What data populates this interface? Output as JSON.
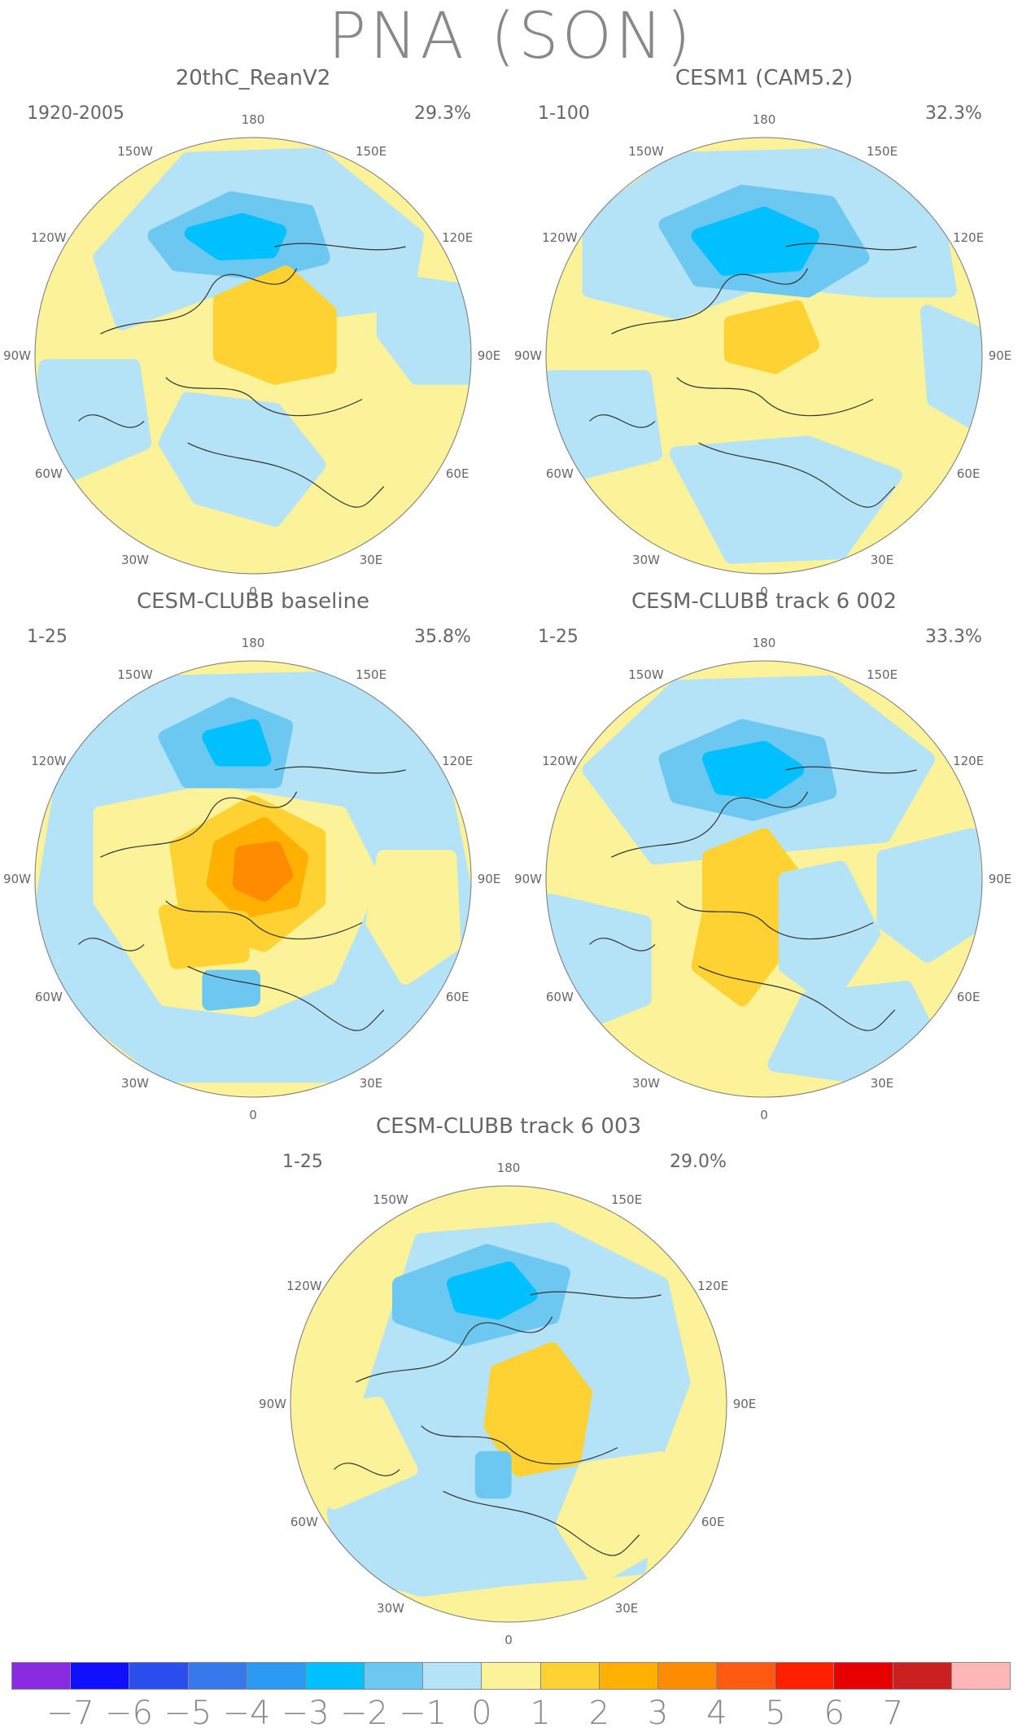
{
  "title": "PNA (SON)",
  "colors": {
    "ocean_bg": "#fbf29a",
    "coast": "#333333"
  },
  "panels": [
    {
      "name": "20thC_ReanV2",
      "years": "1920-2005",
      "variance": "29.3%",
      "blobs": [
        {
          "level": -1,
          "poly": [
            [
              -0.7,
              -0.45
            ],
            [
              -0.3,
              -0.9
            ],
            [
              0.3,
              -0.92
            ],
            [
              0.75,
              -0.55
            ],
            [
              0.7,
              -0.25
            ],
            [
              0.3,
              -0.2
            ],
            [
              -0.2,
              -0.3
            ],
            [
              -0.6,
              -0.15
            ]
          ]
        },
        {
          "level": -2,
          "poly": [
            [
              -0.45,
              -0.55
            ],
            [
              -0.1,
              -0.72
            ],
            [
              0.25,
              -0.66
            ],
            [
              0.32,
              -0.45
            ],
            [
              0.05,
              -0.38
            ],
            [
              -0.35,
              -0.42
            ]
          ]
        },
        {
          "level": -3,
          "poly": [
            [
              -0.28,
              -0.56
            ],
            [
              -0.05,
              -0.62
            ],
            [
              0.12,
              -0.57
            ],
            [
              0.08,
              -0.48
            ],
            [
              -0.15,
              -0.47
            ]
          ]
        },
        {
          "level": 1,
          "poly": [
            [
              -0.15,
              -0.25
            ],
            [
              0.15,
              -0.38
            ],
            [
              0.35,
              -0.2
            ],
            [
              0.35,
              0.05
            ],
            [
              0.1,
              0.1
            ],
            [
              -0.15,
              0.0
            ]
          ]
        },
        {
          "level": -1,
          "poly": [
            [
              -0.3,
              0.2
            ],
            [
              0.1,
              0.25
            ],
            [
              0.3,
              0.5
            ],
            [
              0.1,
              0.75
            ],
            [
              -0.25,
              0.65
            ],
            [
              -0.4,
              0.4
            ]
          ]
        },
        {
          "level": -1,
          "poly": [
            [
              -0.95,
              0.05
            ],
            [
              -0.55,
              0.05
            ],
            [
              -0.5,
              0.4
            ],
            [
              -0.85,
              0.55
            ],
            [
              -0.98,
              0.3
            ]
          ]
        },
        {
          "level": -1,
          "poly": [
            [
              0.6,
              -0.35
            ],
            [
              0.95,
              -0.3
            ],
            [
              0.98,
              0.1
            ],
            [
              0.75,
              0.1
            ],
            [
              0.6,
              -0.1
            ]
          ]
        }
      ]
    },
    {
      "name": "CESM1 (CAM5.2)",
      "years": "1-100",
      "variance": "32.3%",
      "blobs": [
        {
          "level": -1,
          "poly": [
            [
              -0.8,
              -0.6
            ],
            [
              -0.4,
              -0.9
            ],
            [
              0.4,
              -0.92
            ],
            [
              0.8,
              -0.6
            ],
            [
              0.85,
              -0.3
            ],
            [
              0.5,
              -0.3
            ],
            [
              0.0,
              -0.35
            ],
            [
              -0.4,
              -0.2
            ],
            [
              -0.8,
              -0.3
            ]
          ]
        },
        {
          "level": -2,
          "poly": [
            [
              -0.45,
              -0.6
            ],
            [
              -0.1,
              -0.75
            ],
            [
              0.3,
              -0.7
            ],
            [
              0.45,
              -0.45
            ],
            [
              0.2,
              -0.3
            ],
            [
              -0.3,
              -0.35
            ]
          ]
        },
        {
          "level": -3,
          "poly": [
            [
              -0.3,
              -0.55
            ],
            [
              0.0,
              -0.65
            ],
            [
              0.22,
              -0.55
            ],
            [
              0.15,
              -0.42
            ],
            [
              -0.18,
              -0.4
            ]
          ]
        },
        {
          "level": 1,
          "poly": [
            [
              -0.15,
              -0.15
            ],
            [
              0.15,
              -0.22
            ],
            [
              0.22,
              -0.05
            ],
            [
              0.05,
              0.05
            ],
            [
              -0.15,
              0.0
            ]
          ]
        },
        {
          "level": -1,
          "poly": [
            [
              -0.98,
              0.1
            ],
            [
              -0.55,
              0.1
            ],
            [
              -0.5,
              0.45
            ],
            [
              -0.9,
              0.55
            ]
          ]
        },
        {
          "level": -1,
          "poly": [
            [
              -0.4,
              0.45
            ],
            [
              0.2,
              0.4
            ],
            [
              0.6,
              0.55
            ],
            [
              0.35,
              0.9
            ],
            [
              -0.15,
              0.92
            ]
          ]
        },
        {
          "level": -1,
          "poly": [
            [
              0.75,
              -0.2
            ],
            [
              0.98,
              -0.1
            ],
            [
              0.95,
              0.3
            ],
            [
              0.78,
              0.2
            ]
          ]
        }
      ]
    },
    {
      "name": "CESM-CLUBB baseline",
      "years": "1-25",
      "variance": "35.8%",
      "blobs": [
        {
          "level": -1,
          "poly": [
            [
              -0.98,
              0.2
            ],
            [
              -0.85,
              -0.6
            ],
            [
              -0.4,
              -0.9
            ],
            [
              0.4,
              -0.92
            ],
            [
              0.85,
              -0.55
            ],
            [
              0.98,
              0.1
            ],
            [
              0.85,
              0.6
            ],
            [
              0.4,
              0.9
            ],
            [
              -0.4,
              0.9
            ],
            [
              -0.85,
              0.55
            ]
          ]
        },
        {
          "level": 0,
          "poly": [
            [
              -0.7,
              -0.3
            ],
            [
              -0.2,
              -0.4
            ],
            [
              0.4,
              -0.3
            ],
            [
              0.55,
              0.0
            ],
            [
              0.35,
              0.45
            ],
            [
              0.0,
              0.6
            ],
            [
              -0.4,
              0.55
            ],
            [
              -0.7,
              0.1
            ]
          ]
        },
        {
          "level": 0,
          "poly": [
            [
              0.6,
              -0.1
            ],
            [
              0.9,
              -0.1
            ],
            [
              0.92,
              0.3
            ],
            [
              0.7,
              0.45
            ],
            [
              0.55,
              0.2
            ]
          ]
        },
        {
          "level": -2,
          "poly": [
            [
              -0.4,
              -0.65
            ],
            [
              -0.1,
              -0.8
            ],
            [
              0.15,
              -0.7
            ],
            [
              0.1,
              -0.45
            ],
            [
              -0.3,
              -0.45
            ]
          ]
        },
        {
          "level": -3,
          "poly": [
            [
              -0.2,
              -0.65
            ],
            [
              0.0,
              -0.7
            ],
            [
              0.05,
              -0.55
            ],
            [
              -0.15,
              -0.55
            ]
          ]
        },
        {
          "level": 1,
          "poly": [
            [
              -0.35,
              -0.15
            ],
            [
              0.0,
              -0.35
            ],
            [
              0.3,
              -0.2
            ],
            [
              0.3,
              0.1
            ],
            [
              0.05,
              0.3
            ],
            [
              -0.3,
              0.2
            ]
          ]
        },
        {
          "level": 2,
          "poly": [
            [
              -0.15,
              -0.15
            ],
            [
              0.05,
              -0.25
            ],
            [
              0.22,
              -0.1
            ],
            [
              0.18,
              0.1
            ],
            [
              -0.05,
              0.15
            ],
            [
              -0.18,
              0.02
            ]
          ]
        },
        {
          "level": 3,
          "poly": [
            [
              -0.05,
              -0.12
            ],
            [
              0.1,
              -0.14
            ],
            [
              0.15,
              -0.02
            ],
            [
              0.05,
              0.07
            ],
            [
              -0.06,
              0.02
            ]
          ]
        },
        {
          "level": 1,
          "poly": [
            [
              -0.4,
              0.15
            ],
            [
              -0.05,
              0.18
            ],
            [
              -0.05,
              0.35
            ],
            [
              -0.35,
              0.38
            ]
          ]
        },
        {
          "level": -2,
          "poly": [
            [
              -0.2,
              0.45
            ],
            [
              0.0,
              0.45
            ],
            [
              0.0,
              0.55
            ],
            [
              -0.2,
              0.57
            ]
          ]
        }
      ]
    },
    {
      "name": "CESM-CLUBB track 6 002",
      "years": "1-25",
      "variance": "33.3%",
      "blobs": [
        {
          "level": -1,
          "poly": [
            [
              -0.8,
              -0.5
            ],
            [
              -0.4,
              -0.88
            ],
            [
              0.3,
              -0.9
            ],
            [
              0.75,
              -0.55
            ],
            [
              0.55,
              -0.2
            ],
            [
              0.0,
              -0.15
            ],
            [
              -0.5,
              -0.1
            ]
          ]
        },
        {
          "level": -2,
          "poly": [
            [
              -0.45,
              -0.55
            ],
            [
              -0.1,
              -0.7
            ],
            [
              0.25,
              -0.62
            ],
            [
              0.3,
              -0.4
            ],
            [
              -0.05,
              -0.3
            ],
            [
              -0.4,
              -0.38
            ]
          ]
        },
        {
          "level": -3,
          "poly": [
            [
              -0.25,
              -0.55
            ],
            [
              0.0,
              -0.6
            ],
            [
              0.15,
              -0.5
            ],
            [
              0.0,
              -0.4
            ],
            [
              -0.2,
              -0.42
            ]
          ]
        },
        {
          "level": 1,
          "poly": [
            [
              -0.25,
              -0.1
            ],
            [
              0.0,
              -0.2
            ],
            [
              0.15,
              0.0
            ],
            [
              0.05,
              0.35
            ],
            [
              -0.1,
              0.55
            ],
            [
              -0.3,
              0.4
            ],
            [
              -0.25,
              0.15
            ]
          ]
        },
        {
          "level": -1,
          "poly": [
            [
              0.1,
              0.0
            ],
            [
              0.35,
              -0.05
            ],
            [
              0.5,
              0.25
            ],
            [
              0.3,
              0.55
            ],
            [
              0.1,
              0.4
            ]
          ]
        },
        {
          "level": -1,
          "poly": [
            [
              -0.98,
              0.1
            ],
            [
              -0.55,
              0.2
            ],
            [
              -0.55,
              0.55
            ],
            [
              -0.8,
              0.65
            ],
            [
              -0.98,
              0.4
            ]
          ]
        },
        {
          "level": -1,
          "poly": [
            [
              0.2,
              0.55
            ],
            [
              0.65,
              0.5
            ],
            [
              0.75,
              0.7
            ],
            [
              0.4,
              0.9
            ],
            [
              0.05,
              0.85
            ]
          ]
        },
        {
          "level": -1,
          "poly": [
            [
              0.55,
              -0.1
            ],
            [
              0.95,
              -0.2
            ],
            [
              0.98,
              0.2
            ],
            [
              0.75,
              0.35
            ],
            [
              0.55,
              0.2
            ]
          ]
        }
      ]
    },
    {
      "name": "CESM-CLUBB track 6 003",
      "years": "1-25",
      "variance": "29.0%",
      "blobs": [
        {
          "level": -1,
          "poly": [
            [
              -0.8,
              0.5
            ],
            [
              -0.4,
              -0.75
            ],
            [
              0.2,
              -0.8
            ],
            [
              0.7,
              -0.55
            ],
            [
              0.8,
              -0.1
            ],
            [
              0.65,
              0.3
            ],
            [
              0.6,
              0.75
            ],
            [
              0.0,
              0.8
            ],
            [
              -0.4,
              0.85
            ],
            [
              -0.75,
              0.75
            ]
          ]
        },
        {
          "level": -2,
          "poly": [
            [
              -0.5,
              -0.55
            ],
            [
              -0.1,
              -0.7
            ],
            [
              0.25,
              -0.6
            ],
            [
              0.2,
              -0.4
            ],
            [
              -0.2,
              -0.3
            ],
            [
              -0.5,
              -0.4
            ]
          ]
        },
        {
          "level": -3,
          "poly": [
            [
              -0.25,
              -0.55
            ],
            [
              0.0,
              -0.62
            ],
            [
              0.1,
              -0.5
            ],
            [
              -0.05,
              -0.42
            ],
            [
              -0.22,
              -0.45
            ]
          ]
        },
        {
          "level": 1,
          "poly": [
            [
              -0.05,
              -0.15
            ],
            [
              0.2,
              -0.25
            ],
            [
              0.35,
              -0.05
            ],
            [
              0.3,
              0.25
            ],
            [
              0.05,
              0.3
            ],
            [
              -0.08,
              0.1
            ]
          ]
        },
        {
          "level": -2,
          "poly": [
            [
              -0.12,
              0.25
            ],
            [
              -0.02,
              0.25
            ],
            [
              -0.02,
              0.4
            ],
            [
              -0.12,
              0.4
            ]
          ]
        },
        {
          "level": 0,
          "poly": [
            [
              -0.98,
              0.05
            ],
            [
              -0.6,
              0.0
            ],
            [
              -0.45,
              0.3
            ],
            [
              -0.8,
              0.45
            ]
          ]
        },
        {
          "level": 0,
          "poly": [
            [
              0.35,
              0.3
            ],
            [
              0.7,
              0.25
            ],
            [
              0.75,
              0.6
            ],
            [
              0.4,
              0.8
            ],
            [
              0.25,
              0.55
            ]
          ]
        }
      ]
    }
  ],
  "lon_labels": [
    "180",
    "150E",
    "120E",
    "90E",
    "60E",
    "30E",
    "0",
    "30W",
    "60W",
    "90W",
    "120W",
    "150W"
  ],
  "colorbar": {
    "colors": [
      "#8a2be2",
      "#1010ff",
      "#2a4fee",
      "#3579ec",
      "#2b9af4",
      "#00c0ff",
      "#6cc8f0",
      "#b4e2f6",
      "#fbf29a",
      "#ffd233",
      "#ffb000",
      "#ff8c00",
      "#ff5a10",
      "#ff2000",
      "#e60000",
      "#cc2020",
      "#ffb6b6"
    ],
    "ticks": [
      "−7",
      "−6",
      "−5",
      "−4",
      "−3",
      "−2",
      "−1",
      "0",
      "1",
      "2",
      "3",
      "4",
      "5",
      "6",
      "7"
    ]
  }
}
